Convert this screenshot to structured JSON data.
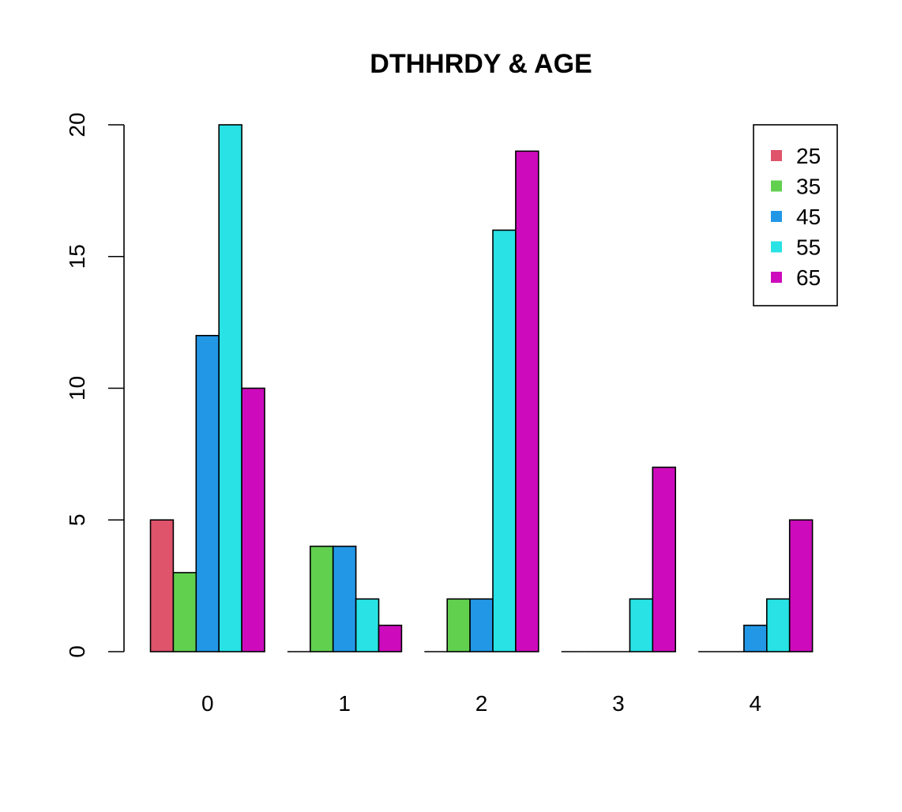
{
  "chart_data": {
    "type": "bar",
    "title": "DTHHRDY & AGE",
    "xlabel": "",
    "ylabel": "",
    "ylim": [
      0,
      20
    ],
    "y_ticks": [
      0,
      5,
      10,
      15,
      20
    ],
    "categories": [
      "0",
      "1",
      "2",
      "3",
      "4"
    ],
    "series": [
      {
        "name": "25",
        "color": "#DF536B",
        "values": [
          5,
          0,
          0,
          0,
          0
        ]
      },
      {
        "name": "35",
        "color": "#61D04F",
        "values": [
          3,
          4,
          2,
          0,
          0
        ]
      },
      {
        "name": "45",
        "color": "#2297E6",
        "values": [
          12,
          4,
          2,
          0,
          1
        ]
      },
      {
        "name": "55",
        "color": "#28E2E5",
        "values": [
          20,
          2,
          16,
          2,
          2
        ]
      },
      {
        "name": "65",
        "color": "#CD0BBC",
        "values": [
          10,
          1,
          19,
          7,
          5
        ]
      }
    ],
    "legend_position": "top-right",
    "grid": false
  }
}
